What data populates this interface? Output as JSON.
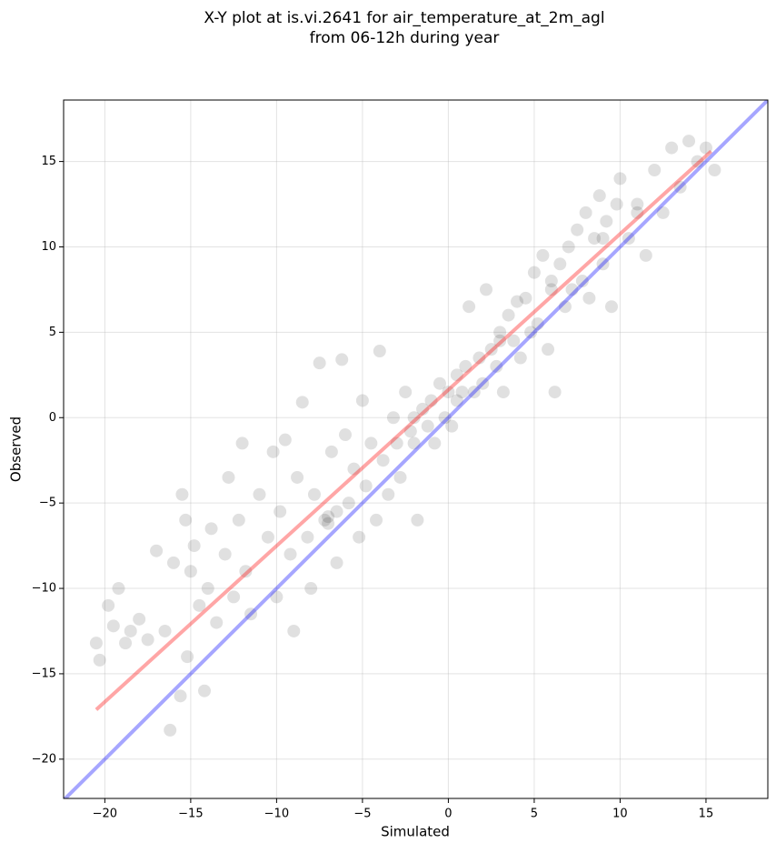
{
  "chart_data": {
    "type": "scatter",
    "title": [
      "X-Y plot at is.vi.2641 for air_temperature_at_2m_agl",
      "from 06-12h during year"
    ],
    "x_label": "Simulated",
    "y_label": "Observed",
    "xlim": [
      -22.4,
      18.6
    ],
    "ylim": [
      -22.3,
      18.6
    ],
    "xticks": [
      {
        "value": -20,
        "label": "−20"
      },
      {
        "value": -15,
        "label": "−15"
      },
      {
        "value": -10,
        "label": "−10"
      },
      {
        "value": -5,
        "label": "−5"
      },
      0,
      5,
      10,
      15
    ],
    "yticks": [
      {
        "value": -20,
        "label": "−20"
      },
      {
        "value": -15,
        "label": "−15"
      },
      {
        "value": -10,
        "label": "−10"
      },
      {
        "value": -5,
        "label": "−5"
      },
      0,
      5,
      10,
      15
    ],
    "grid": true,
    "points": {
      "color": "#000000",
      "x": [
        -20.5,
        -20.3,
        -19.8,
        -19.5,
        -19.2,
        -18.8,
        -18.5,
        -18,
        -17.5,
        -17,
        -16.5,
        -16,
        -16.2,
        -15.6,
        -15.5,
        -15.3,
        -15.2,
        -15,
        -14.8,
        -14.5,
        -14.2,
        -14,
        -13.8,
        -13.5,
        -13,
        -12.8,
        -12.5,
        -12.2,
        -12,
        -11.8,
        -11.5,
        -11,
        -10.5,
        -10.2,
        -10,
        -9.8,
        -9.5,
        -9.2,
        -9,
        -8.8,
        -8.5,
        -8.2,
        -8,
        -7.8,
        -7.5,
        -7.2,
        -7,
        -6.8,
        -6.5,
        -6.2,
        -6,
        -5.8,
        -5.5,
        -5.2,
        -5,
        -4.8,
        -4.5,
        -4.2,
        -4,
        -3.8,
        -3.5,
        -3.2,
        -3,
        -2.8,
        -2.5,
        -2.2,
        -2,
        -1.8,
        -1.5,
        -1.2,
        -1,
        -0.8,
        -0.5,
        -0.2,
        0,
        0.2,
        0.5,
        0.8,
        1,
        1.2,
        1.5,
        1.8,
        2,
        2.2,
        2.5,
        2.8,
        3,
        3.2,
        3.5,
        3.8,
        4,
        4.2,
        4.5,
        4.8,
        5,
        5.2,
        5.5,
        5.8,
        6,
        6.2,
        6.5,
        6.8,
        7,
        7.2,
        7.5,
        7.8,
        8,
        8.2,
        8.5,
        8.8,
        9,
        9.2,
        9.5,
        9.8,
        10,
        10.5,
        11,
        11.5,
        12,
        12.5,
        13,
        13.5,
        14,
        14.5,
        15,
        15.5,
        -7,
        -6.5,
        -2,
        0.5,
        3,
        6,
        9,
        11
      ],
      "y": [
        -13.2,
        -14.2,
        -11,
        -12.2,
        -10,
        -13.2,
        -12.5,
        -11.8,
        -13,
        -7.8,
        -12.5,
        -8.5,
        -18.3,
        -16.3,
        -4.5,
        -6,
        -14,
        -9,
        -7.5,
        -11,
        -16,
        -10,
        -6.5,
        -12,
        -8,
        -3.5,
        -10.5,
        -6,
        -1.5,
        -9,
        -11.5,
        -4.5,
        -7,
        -2,
        -10.5,
        -5.5,
        -1.3,
        -8,
        -12.5,
        -3.5,
        0.9,
        -7,
        -10,
        -4.5,
        3.2,
        -6,
        -5.8,
        -2,
        -8.5,
        3.4,
        -1,
        -5,
        -3,
        -7,
        1,
        -4,
        -1.5,
        -6,
        3.9,
        -2.5,
        -4.5,
        0,
        -1.5,
        -3.5,
        1.5,
        -0.8,
        -1.5,
        -6,
        0.5,
        -0.5,
        1,
        -1.5,
        2,
        0,
        1.5,
        -0.5,
        2.5,
        1.5,
        3,
        6.5,
        1.5,
        3.5,
        2,
        7.5,
        4,
        3,
        5,
        1.5,
        6,
        4.5,
        6.8,
        3.5,
        7,
        5,
        8.5,
        5.5,
        9.5,
        4,
        7.5,
        1.5,
        9,
        6.5,
        10,
        7.5,
        11,
        8,
        12,
        7,
        10.5,
        13,
        9,
        11.5,
        6.5,
        12.5,
        14,
        10.5,
        12.5,
        9.5,
        14.5,
        12,
        15.8,
        13.5,
        16.2,
        15,
        15.8,
        14.5,
        -6.2,
        -5.5,
        0,
        1,
        4.5,
        8,
        10.5,
        12
      ]
    },
    "lines": [
      {
        "color": "#0000ff",
        "x": [
          -22.4,
          18.6
        ],
        "values": [
          -22.4,
          18.6
        ]
      },
      {
        "color": "#ff0000",
        "x": [
          -20.5,
          15.3
        ],
        "values": [
          -17.1,
          15.6
        ]
      }
    ]
  }
}
